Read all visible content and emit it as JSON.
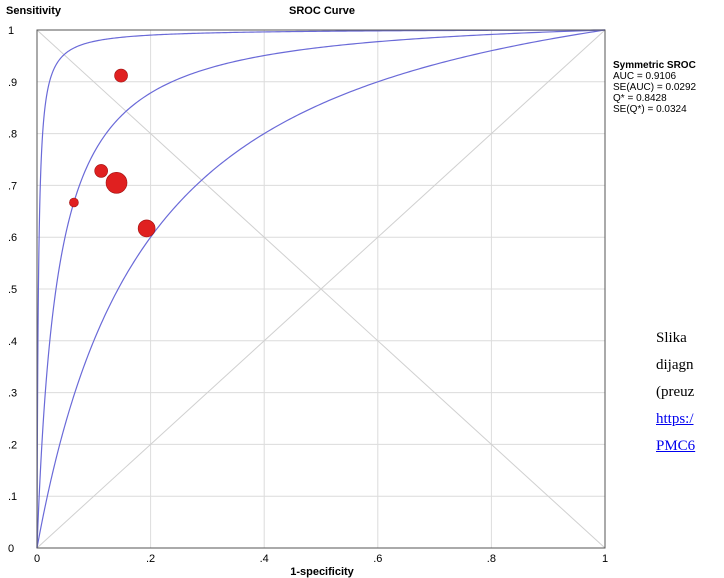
{
  "chart_data": {
    "type": "scatter",
    "title": "SROC Curve",
    "xlabel": "1-specificity",
    "ylabel": "Sensitivity",
    "xlim": [
      0,
      1
    ],
    "ylim": [
      0,
      1
    ],
    "x_ticks": [
      "0",
      ".2",
      ".4",
      ".6",
      ".8",
      "1"
    ],
    "y_ticks": [
      "0",
      ".1",
      ".2",
      ".3",
      ".4",
      ".5",
      ".6",
      ".7",
      ".8",
      ".9",
      "1"
    ],
    "grid": true,
    "reference_diagonals": true,
    "point_color": "#e02020",
    "curve_color": "#6a6ad8",
    "points": [
      {
        "x": 0.148,
        "y": 0.912,
        "weight": 2
      },
      {
        "x": 0.113,
        "y": 0.728,
        "weight": 2
      },
      {
        "x": 0.14,
        "y": 0.705,
        "weight": 4
      },
      {
        "x": 0.065,
        "y": 0.667,
        "weight": 1
      },
      {
        "x": 0.193,
        "y": 0.617,
        "weight": 3
      }
    ],
    "curves": [
      {
        "role": "upper",
        "dor": 400
      },
      {
        "role": "sroc",
        "dor": 28.9
      },
      {
        "role": "lower",
        "dor": 6
      }
    ],
    "stats": {
      "heading": "Symmetric SROC",
      "lines": [
        "AUC = 0.9106",
        "SE(AUC) = 0.0292",
        "Q* = 0.8428",
        "SE(Q*) = 0.0324"
      ]
    }
  },
  "caption": {
    "lines": [
      "Slika",
      "dijagn",
      "(preuz"
    ],
    "links": [
      "https:/",
      "PMC6"
    ]
  }
}
